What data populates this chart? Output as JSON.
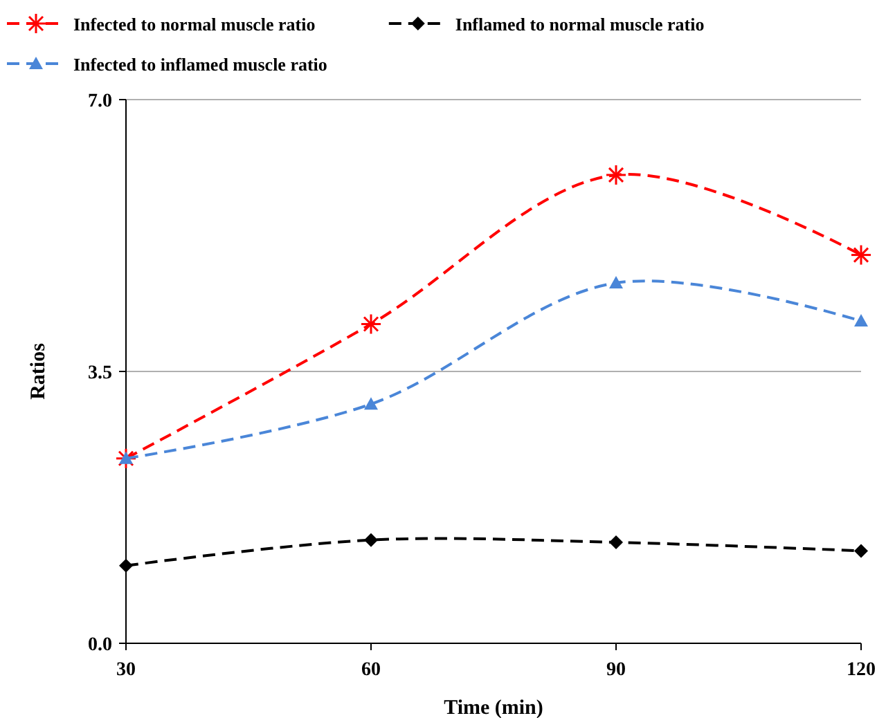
{
  "chart_data": {
    "type": "line",
    "xlabel": "Time (min)",
    "ylabel": "Ratios",
    "x": [
      30,
      60,
      90,
      120
    ],
    "series": [
      {
        "name": "Infected to normal muscle ratio",
        "color": "#ff0000",
        "marker": "cross",
        "values": [
          2.38,
          4.11,
          6.03,
          5.0
        ]
      },
      {
        "name": "Inflamed to normal muscle ratio",
        "color": "#000000",
        "marker": "diamond",
        "values": [
          1.0,
          1.33,
          1.3,
          1.19
        ]
      },
      {
        "name": "Infected to inflamed muscle ratio",
        "color": "#4a86d8",
        "marker": "triangle",
        "values": [
          2.38,
          3.08,
          4.64,
          4.15
        ]
      }
    ],
    "xlim": [
      30,
      120
    ],
    "xticks": [
      30,
      60,
      90,
      120
    ],
    "ylim": [
      0,
      7
    ],
    "yticks": [
      {
        "value": 0,
        "label": "0.0"
      },
      {
        "value": 3.5,
        "label": "3.5"
      },
      {
        "value": 7,
        "label": "7.0"
      }
    ],
    "grid": "y",
    "legend": "top",
    "line_style": "dashed"
  }
}
